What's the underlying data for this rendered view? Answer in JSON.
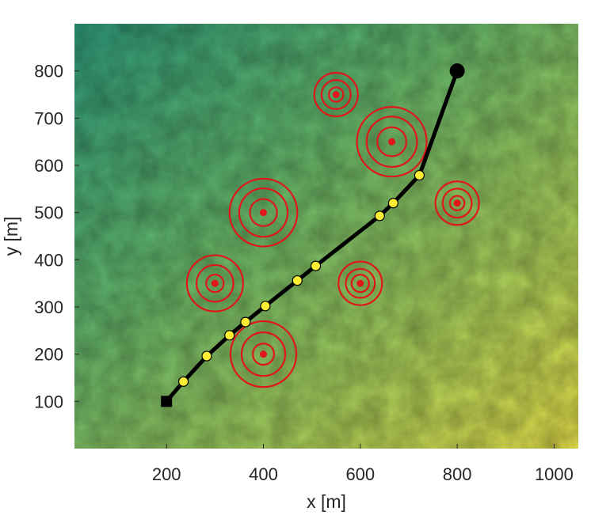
{
  "chart_data": {
    "type": "scatter",
    "xlabel": "x [m]",
    "ylabel": "y [m]",
    "xlim": [
      10,
      1050
    ],
    "ylim": [
      0,
      900
    ],
    "xticks": [
      200,
      400,
      600,
      800,
      1000
    ],
    "yticks": [
      100,
      200,
      300,
      400,
      500,
      600,
      700,
      800
    ],
    "grid": false,
    "background": "terrain elevation map (green to yellow shading)",
    "path": {
      "start": {
        "x": 200,
        "y": 100,
        "marker": "square",
        "color": "#000000"
      },
      "end": {
        "x": 800,
        "y": 800,
        "marker": "circle",
        "color": "#000000"
      },
      "points": [
        {
          "x": 200,
          "y": 100
        },
        {
          "x": 235,
          "y": 142
        },
        {
          "x": 283,
          "y": 196
        },
        {
          "x": 330,
          "y": 240
        },
        {
          "x": 363,
          "y": 268
        },
        {
          "x": 404,
          "y": 302
        },
        {
          "x": 470,
          "y": 356
        },
        {
          "x": 508,
          "y": 387
        },
        {
          "x": 640,
          "y": 493
        },
        {
          "x": 668,
          "y": 520
        },
        {
          "x": 722,
          "y": 579
        },
        {
          "x": 800,
          "y": 800
        }
      ],
      "waypoints": [
        {
          "x": 235,
          "y": 142
        },
        {
          "x": 283,
          "y": 196
        },
        {
          "x": 330,
          "y": 240
        },
        {
          "x": 363,
          "y": 268
        },
        {
          "x": 404,
          "y": 302
        },
        {
          "x": 470,
          "y": 356
        },
        {
          "x": 508,
          "y": 387
        },
        {
          "x": 640,
          "y": 493
        },
        {
          "x": 668,
          "y": 520
        },
        {
          "x": 722,
          "y": 579
        }
      ],
      "line_color": "#000000",
      "waypoint_color": "#ffee33"
    },
    "obstacles": [
      {
        "x": 400,
        "y": 200,
        "radii": [
          22,
          45,
          68
        ]
      },
      {
        "x": 300,
        "y": 350,
        "radii": [
          18,
          38,
          58
        ]
      },
      {
        "x": 600,
        "y": 350,
        "radii": [
          18,
          30,
          45
        ]
      },
      {
        "x": 400,
        "y": 500,
        "radii": [
          28,
          50,
          70
        ]
      },
      {
        "x": 550,
        "y": 750,
        "radii": [
          15,
          30,
          45
        ]
      },
      {
        "x": 665,
        "y": 650,
        "radii": [
          30,
          52,
          72
        ]
      },
      {
        "x": 800,
        "y": 520,
        "radii": [
          15,
          30,
          45
        ]
      }
    ],
    "obstacle_color": "#e0161b"
  }
}
